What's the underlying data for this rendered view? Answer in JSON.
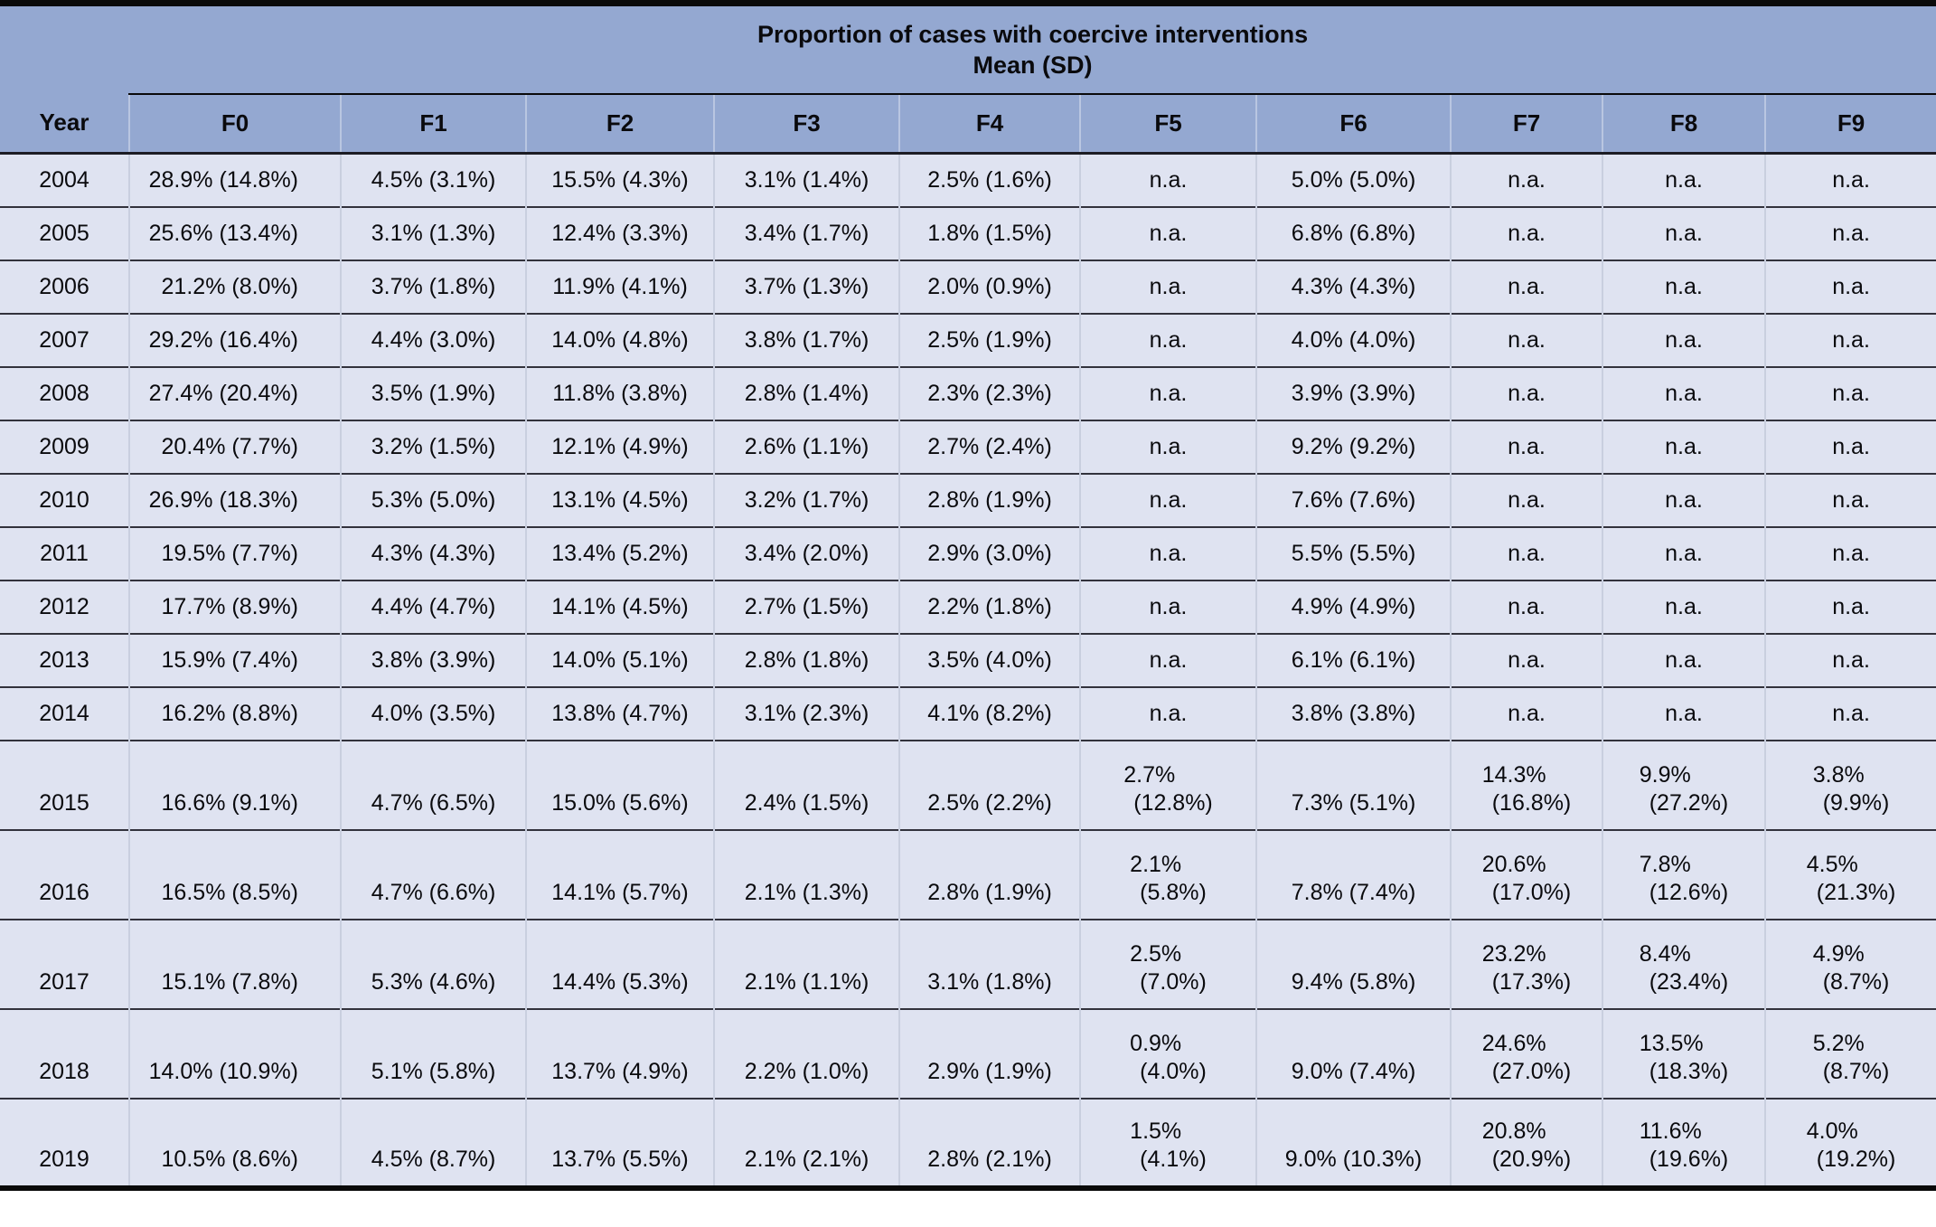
{
  "colors": {
    "header_bg": "#94a8d1",
    "body_bg": "#dfe3f1",
    "rule_dark": "#32323c",
    "rule_black": "#0a0a0a",
    "vsep_body": "#c9cfdf",
    "text": "#0a0a0d"
  },
  "table": {
    "title_line1": "Proportion of cases with coercive interventions",
    "title_line2": "Mean (SD)",
    "columns": [
      "Year",
      "F0",
      "F1",
      "F2",
      "F3",
      "F4",
      "F5",
      "F6",
      "F7",
      "F8",
      "F9"
    ],
    "na_label": "n.a.",
    "rows": [
      {
        "year": "2004",
        "tall": false,
        "values": [
          "28.9% (14.8%)",
          "4.5% (3.1%)",
          "15.5% (4.3%)",
          "3.1% (1.4%)",
          "2.5% (1.6%)",
          "n.a.",
          "5.0% (5.0%)",
          "n.a.",
          "n.a.",
          "n.a."
        ]
      },
      {
        "year": "2005",
        "tall": false,
        "values": [
          "25.6% (13.4%)",
          "3.1% (1.3%)",
          "12.4% (3.3%)",
          "3.4% (1.7%)",
          "1.8% (1.5%)",
          "n.a.",
          "6.8% (6.8%)",
          "n.a.",
          "n.a.",
          "n.a."
        ]
      },
      {
        "year": "2006",
        "tall": false,
        "values": [
          "21.2% (8.0%)",
          "3.7% (1.8%)",
          "11.9% (4.1%)",
          "3.7% (1.3%)",
          "2.0% (0.9%)",
          "n.a.",
          "4.3% (4.3%)",
          "n.a.",
          "n.a.",
          "n.a."
        ]
      },
      {
        "year": "2007",
        "tall": false,
        "values": [
          "29.2% (16.4%)",
          "4.4% (3.0%)",
          "14.0% (4.8%)",
          "3.8% (1.7%)",
          "2.5% (1.9%)",
          "n.a.",
          "4.0% (4.0%)",
          "n.a.",
          "n.a.",
          "n.a."
        ]
      },
      {
        "year": "2008",
        "tall": false,
        "values": [
          "27.4% (20.4%)",
          "3.5% (1.9%)",
          "11.8% (3.8%)",
          "2.8% (1.4%)",
          "2.3% (2.3%)",
          "n.a.",
          "3.9% (3.9%)",
          "n.a.",
          "n.a.",
          "n.a."
        ]
      },
      {
        "year": "2009",
        "tall": false,
        "values": [
          "20.4% (7.7%)",
          "3.2% (1.5%)",
          "12.1% (4.9%)",
          "2.6% (1.1%)",
          "2.7% (2.4%)",
          "n.a.",
          "9.2% (9.2%)",
          "n.a.",
          "n.a.",
          "n.a."
        ]
      },
      {
        "year": "2010",
        "tall": false,
        "values": [
          "26.9% (18.3%)",
          "5.3% (5.0%)",
          "13.1% (4.5%)",
          "3.2% (1.7%)",
          "2.8% (1.9%)",
          "n.a.",
          "7.6% (7.6%)",
          "n.a.",
          "n.a.",
          "n.a."
        ]
      },
      {
        "year": "2011",
        "tall": false,
        "values": [
          "19.5% (7.7%)",
          "4.3% (4.3%)",
          "13.4% (5.2%)",
          "3.4% (2.0%)",
          "2.9% (3.0%)",
          "n.a.",
          "5.5% (5.5%)",
          "n.a.",
          "n.a.",
          "n.a."
        ]
      },
      {
        "year": "2012",
        "tall": false,
        "values": [
          "17.7% (8.9%)",
          "4.4% (4.7%)",
          "14.1% (4.5%)",
          "2.7% (1.5%)",
          "2.2% (1.8%)",
          "n.a.",
          "4.9% (4.9%)",
          "n.a.",
          "n.a.",
          "n.a."
        ]
      },
      {
        "year": "2013",
        "tall": false,
        "values": [
          "15.9% (7.4%)",
          "3.8% (3.9%)",
          "14.0% (5.1%)",
          "2.8% (1.8%)",
          "3.5% (4.0%)",
          "n.a.",
          "6.1% (6.1%)",
          "n.a.",
          "n.a.",
          "n.a."
        ]
      },
      {
        "year": "2014",
        "tall": false,
        "values": [
          "16.2% (8.8%)",
          "4.0% (3.5%)",
          "13.8% (4.7%)",
          "3.1% (2.3%)",
          "4.1% (8.2%)",
          "n.a.",
          "3.8% (3.8%)",
          "n.a.",
          "n.a.",
          "n.a."
        ]
      },
      {
        "year": "2015",
        "tall": true,
        "values": [
          "16.6% (9.1%)",
          "4.7% (6.5%)",
          "15.0% (5.6%)",
          "2.4% (1.5%)",
          "2.5% (2.2%)",
          "2.7%\n(12.8%)",
          "7.3% (5.1%)",
          "14.3%\n(16.8%)",
          "9.9%\n(27.2%)",
          "3.8%\n(9.9%)"
        ]
      },
      {
        "year": "2016",
        "tall": true,
        "values": [
          "16.5% (8.5%)",
          "4.7% (6.6%)",
          "14.1% (5.7%)",
          "2.1% (1.3%)",
          "2.8% (1.9%)",
          "2.1%\n(5.8%)",
          "7.8% (7.4%)",
          "20.6%\n(17.0%)",
          "7.8%\n(12.6%)",
          "4.5%\n(21.3%)"
        ]
      },
      {
        "year": "2017",
        "tall": true,
        "values": [
          "15.1% (7.8%)",
          "5.3% (4.6%)",
          "14.4% (5.3%)",
          "2.1% (1.1%)",
          "3.1% (1.8%)",
          "2.5%\n(7.0%)",
          "9.4% (5.8%)",
          "23.2%\n(17.3%)",
          "8.4%\n(23.4%)",
          "4.9%\n(8.7%)"
        ]
      },
      {
        "year": "2018",
        "tall": true,
        "values": [
          "14.0% (10.9%)",
          "5.1% (5.8%)",
          "13.7% (4.9%)",
          "2.2% (1.0%)",
          "2.9% (1.9%)",
          "0.9%\n(4.0%)",
          "9.0% (7.4%)",
          "24.6%\n(27.0%)",
          "13.5%\n(18.3%)",
          "5.2%\n(8.7%)"
        ]
      },
      {
        "year": "2019",
        "tall": true,
        "values": [
          "10.5% (8.6%)",
          "4.5% (8.7%)",
          "13.7% (5.5%)",
          "2.1% (2.1%)",
          "2.8% (2.1%)",
          "1.5%\n(4.1%)",
          "9.0% (10.3%)",
          "20.8%\n(20.9%)",
          "11.6%\n(19.6%)",
          "4.0%\n(19.2%)"
        ]
      }
    ]
  }
}
